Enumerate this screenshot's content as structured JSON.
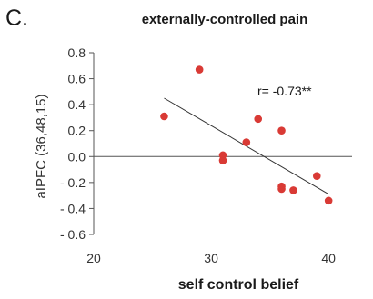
{
  "panel_label": "C.",
  "chart_data": {
    "type": "scatter",
    "title": "externally-controlled pain",
    "xlabel": "self control belief",
    "ylabel": "aIPFC (36,48,15)",
    "xlim": [
      20,
      42
    ],
    "ylim": [
      -0.6,
      0.8
    ],
    "xticks": [
      20,
      30,
      40
    ],
    "yticks": [
      -0.6,
      -0.4,
      -0.2,
      0.0,
      0.2,
      0.4,
      0.6,
      0.8
    ],
    "ytick_labels": [
      "- 0.6",
      "- 0.4",
      "- 0.2",
      "0.0",
      "0.2",
      "0.4",
      "0.6",
      "0.8"
    ],
    "grid": false,
    "zero_line": true,
    "annotation": "r= -0.73**",
    "point_color": "#d93a35",
    "points": [
      {
        "x": 26,
        "y": 0.31
      },
      {
        "x": 29,
        "y": 0.67
      },
      {
        "x": 31,
        "y": 0.01
      },
      {
        "x": 31,
        "y": -0.03
      },
      {
        "x": 33,
        "y": 0.11
      },
      {
        "x": 34,
        "y": 0.29
      },
      {
        "x": 36,
        "y": 0.2
      },
      {
        "x": 36,
        "y": -0.23
      },
      {
        "x": 36,
        "y": -0.25
      },
      {
        "x": 37,
        "y": -0.26
      },
      {
        "x": 39,
        "y": -0.15
      },
      {
        "x": 40,
        "y": -0.34
      }
    ],
    "regression": {
      "x": [
        26,
        40
      ],
      "y": [
        0.45,
        -0.29
      ]
    }
  }
}
